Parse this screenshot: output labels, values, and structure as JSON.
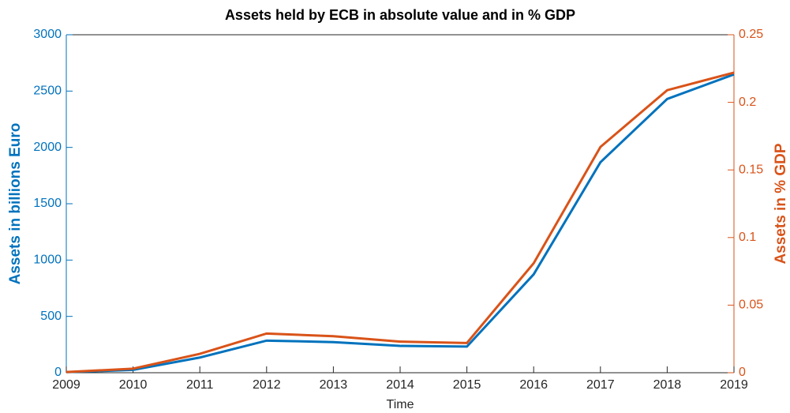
{
  "chart_data": {
    "type": "line",
    "title": "Assets held by ECB in absolute value and in % GDP",
    "xlabel": "Time",
    "ylabel": "Assets in billions Euro",
    "y2label": "Assets in % GDP",
    "x": [
      2009,
      2010,
      2011,
      2012,
      2013,
      2014,
      2015,
      2016,
      2017,
      2018,
      2019
    ],
    "xlim": [
      2009,
      2019
    ],
    "xticks": [
      2009,
      2010,
      2011,
      2012,
      2013,
      2014,
      2015,
      2016,
      2017,
      2018,
      2019
    ],
    "ylim": [
      0,
      3000
    ],
    "yticks": [
      0,
      500,
      1000,
      1500,
      2000,
      2500,
      3000
    ],
    "y2lim": [
      0,
      0.25
    ],
    "y2ticks": [
      0,
      0.05,
      0.1,
      0.15,
      0.2,
      0.25
    ],
    "grid": false,
    "series": [
      {
        "color": "#0072bd",
        "values": [
          5,
          25,
          135,
          285,
          272,
          238,
          232,
          873,
          1868,
          2430,
          2648
        ]
      },
      {
        "color": "#d95319",
        "axis": "y2",
        "values": [
          0.0005,
          0.003,
          0.014,
          0.029,
          0.027,
          0.023,
          0.022,
          0.081,
          0.167,
          0.209,
          0.222
        ]
      }
    ]
  }
}
